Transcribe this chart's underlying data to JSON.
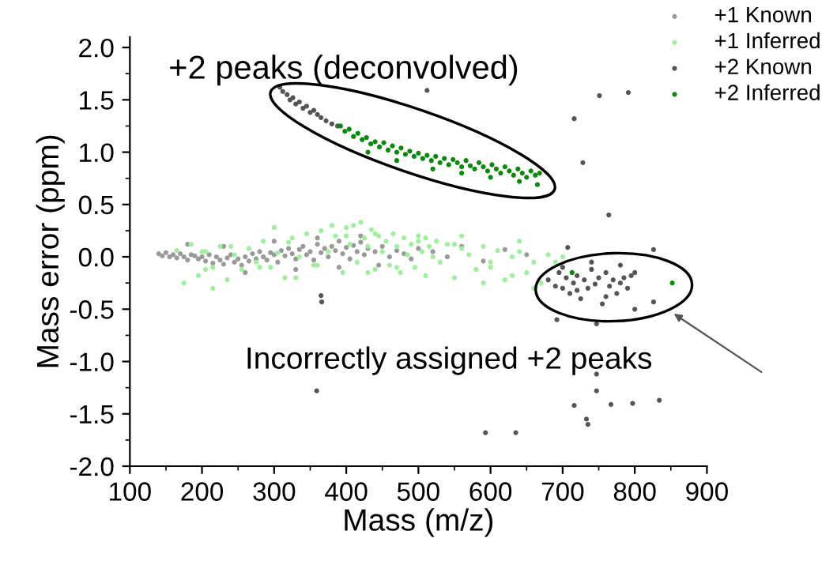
{
  "chart_data": {
    "type": "scatter",
    "xlabel": "Mass (m/z)",
    "ylabel": "Mass error (ppm)",
    "xlim": [
      100,
      900
    ],
    "ylim": [
      -2.0,
      2.1
    ],
    "xticks": [
      100,
      200,
      300,
      400,
      500,
      600,
      700,
      800,
      900
    ],
    "yticks": [
      {
        "value": -2.0,
        "label": "-2.0"
      },
      {
        "value": -1.5,
        "label": "-1.5"
      },
      {
        "value": -1.0,
        "label": "-1.0"
      },
      {
        "value": -0.5,
        "label": "-0.5"
      },
      {
        "value": 0.0,
        "label": "0.0"
      },
      {
        "value": 0.5,
        "label": "0.5"
      },
      {
        "value": 1.0,
        "label": "1.0"
      },
      {
        "value": 1.5,
        "label": "1.5"
      },
      {
        "value": 2.0,
        "label": "2.0"
      }
    ],
    "grid": false,
    "legend": "top right",
    "marker": "circle",
    "annotations": [
      "+2 peaks (deconvolved)",
      "Incorrectly assigned +2 peaks"
    ],
    "series": [
      {
        "name": "+1 Known",
        "color": "#9a9a9a",
        "x": [
          140,
          145,
          150,
          155,
          160,
          165,
          170,
          175,
          180,
          185,
          190,
          195,
          200,
          205,
          210,
          215,
          220,
          225,
          230,
          235,
          240,
          245,
          250,
          255,
          260,
          265,
          270,
          275,
          280,
          285,
          290,
          295,
          300,
          305,
          310,
          315,
          320,
          325,
          330,
          335,
          340,
          345,
          350,
          355,
          360,
          365,
          370,
          375,
          380,
          385,
          390,
          395,
          400,
          405,
          410,
          415,
          420,
          425,
          430,
          440,
          450,
          460,
          470,
          480,
          490,
          500,
          520,
          540,
          560,
          590,
          620,
          650,
          180,
          230,
          260,
          300,
          330,
          360,
          390,
          420,
          445
        ],
        "values": [
          0.03,
          0.01,
          0.04,
          0.0,
          0.02,
          -0.01,
          0.03,
          0.0,
          -0.03,
          0.02,
          0.01,
          -0.02,
          0.0,
          -0.04,
          0.02,
          -0.06,
          0.0,
          -0.03,
          -0.07,
          -0.01,
          0.02,
          -0.05,
          -0.02,
          -0.08,
          0.0,
          -0.04,
          0.03,
          -0.02,
          0.05,
          0.0,
          -0.03,
          0.04,
          0.02,
          -0.05,
          0.06,
          0.01,
          0.08,
          0.03,
          -0.02,
          0.07,
          0.1,
          0.02,
          0.05,
          -0.03,
          0.12,
          0.04,
          0.08,
          0.0,
          0.1,
          0.06,
          0.15,
          0.03,
          0.09,
          -0.02,
          0.11,
          0.05,
          0.14,
          0.02,
          0.08,
          0.05,
          0.1,
          0.0,
          0.06,
          0.03,
          -0.02,
          0.08,
          0.05,
          0.0,
          0.1,
          -0.04,
          0.07,
          0.02,
          0.12,
          0.1,
          -0.15,
          0.15,
          -0.12,
          0.18,
          -0.1,
          0.2,
          -0.08
        ]
      },
      {
        "name": "+1 Inferred",
        "color": "#9ef09e",
        "x": [
          165,
          175,
          185,
          195,
          205,
          215,
          225,
          235,
          245,
          255,
          265,
          275,
          285,
          295,
          305,
          315,
          325,
          335,
          345,
          355,
          365,
          375,
          385,
          395,
          400,
          405,
          410,
          415,
          420,
          425,
          430,
          435,
          440,
          445,
          450,
          455,
          460,
          465,
          470,
          475,
          480,
          485,
          490,
          495,
          500,
          505,
          510,
          515,
          520,
          525,
          530,
          540,
          550,
          560,
          570,
          580,
          590,
          600,
          610,
          620,
          630,
          640,
          650,
          660,
          670,
          680,
          690,
          700,
          200,
          240,
          280,
          320,
          360,
          400,
          430,
          470,
          510,
          550,
          590,
          630,
          660,
          205,
          215,
          300,
          330,
          380,
          440,
          500,
          560,
          600,
          640
        ],
        "values": [
          0.06,
          -0.25,
          0.12,
          -0.18,
          0.05,
          -0.3,
          0.1,
          -0.22,
          0.02,
          -0.12,
          0.08,
          -0.05,
          0.15,
          -0.1,
          0.04,
          -0.2,
          0.18,
          0.0,
          0.22,
          -0.08,
          0.25,
          0.05,
          0.2,
          -0.15,
          0.28,
          0.12,
          0.3,
          -0.05,
          0.33,
          0.18,
          0.1,
          0.26,
          -0.12,
          0.2,
          0.05,
          0.15,
          -0.08,
          0.22,
          0.1,
          -0.15,
          0.18,
          0.02,
          0.12,
          -0.1,
          0.2,
          0.05,
          -0.18,
          0.1,
          0.0,
          0.15,
          -0.05,
          0.12,
          -0.2,
          0.08,
          0.02,
          -0.12,
          0.1,
          -0.05,
          0.06,
          -0.22,
          0.0,
          0.05,
          -0.15,
          -0.05,
          -0.25,
          0.02,
          -0.05,
          0.0,
          0.05,
          0.1,
          -0.1,
          0.14,
          -0.08,
          0.2,
          -0.15,
          -0.1,
          0.18,
          0.12,
          -0.25,
          -0.18,
          -0.3,
          -0.12,
          -0.1,
          0.28,
          -0.2,
          0.3,
          0.22,
          0.15,
          0.2,
          -0.1,
          0.15
        ]
      },
      {
        "name": "+2 Known",
        "color": "#555555",
        "x": [
          308,
          312,
          318,
          322,
          326,
          330,
          335,
          340,
          345,
          350,
          355,
          360,
          365,
          372,
          380,
          388,
          512,
          751,
          791,
          716,
          728,
          764,
          707,
          826,
          365,
          366,
          359,
          593,
          635,
          716,
          733,
          735,
          747,
          747,
          767,
          797,
          834,
          692,
          747,
          826,
          680,
          690,
          695,
          700,
          705,
          710,
          715,
          720,
          725,
          730,
          735,
          740,
          745,
          750,
          755,
          760,
          765,
          770,
          775,
          780,
          785,
          790,
          795,
          800,
          700,
          720,
          740,
          760,
          780,
          800
        ],
        "values": [
          1.62,
          1.58,
          1.55,
          1.5,
          1.52,
          1.46,
          1.48,
          1.42,
          1.44,
          1.38,
          1.4,
          1.36,
          1.33,
          1.3,
          1.27,
          1.25,
          1.59,
          1.54,
          1.57,
          1.32,
          0.9,
          0.4,
          0.09,
          0.07,
          -0.37,
          -0.43,
          -1.28,
          -1.68,
          -1.68,
          -1.42,
          -1.55,
          -1.6,
          -1.28,
          -1.12,
          -1.41,
          -1.4,
          -1.37,
          -0.6,
          -0.64,
          -0.43,
          -0.22,
          -0.28,
          -0.15,
          -0.3,
          -0.2,
          -0.35,
          -0.25,
          -0.18,
          -0.4,
          -0.22,
          -0.3,
          -0.12,
          -0.26,
          -0.2,
          -0.45,
          -0.15,
          -0.28,
          -0.22,
          -0.35,
          -0.08,
          -0.2,
          -0.3,
          -0.18,
          -0.5,
          -0.1,
          -0.32,
          -0.05,
          -0.38,
          -0.25,
          -0.15
        ]
      },
      {
        "name": "+2 Inferred",
        "color": "#0a8a0a",
        "x": [
          392,
          398,
          404,
          410,
          416,
          422,
          428,
          434,
          440,
          446,
          452,
          458,
          464,
          470,
          476,
          482,
          488,
          494,
          500,
          506,
          512,
          518,
          524,
          530,
          536,
          542,
          548,
          554,
          560,
          566,
          572,
          578,
          584,
          590,
          596,
          602,
          608,
          614,
          620,
          626,
          632,
          638,
          644,
          650,
          656,
          662,
          668,
          430,
          470,
          520,
          560,
          600,
          640,
          665,
          713,
          852
        ],
        "values": [
          1.25,
          1.2,
          1.22,
          1.15,
          1.18,
          1.12,
          1.14,
          1.08,
          1.1,
          1.05,
          1.09,
          1.02,
          1.06,
          1.0,
          1.04,
          0.98,
          1.01,
          0.96,
          0.99,
          0.94,
          0.97,
          0.92,
          0.96,
          0.9,
          0.94,
          0.88,
          0.93,
          0.9,
          0.86,
          0.92,
          0.87,
          0.84,
          0.9,
          0.86,
          0.82,
          0.88,
          0.84,
          0.8,
          0.86,
          0.82,
          0.78,
          0.84,
          0.8,
          0.76,
          0.82,
          0.78,
          0.8,
          1.0,
          0.92,
          0.84,
          0.8,
          0.76,
          0.72,
          0.69,
          -0.15,
          -0.25
        ]
      }
    ]
  }
}
